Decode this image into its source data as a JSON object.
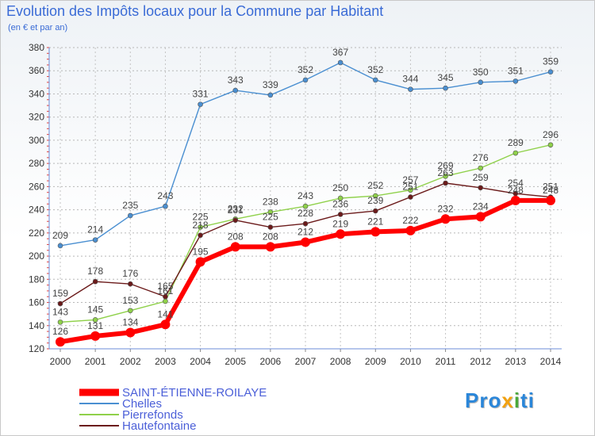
{
  "chart_data": {
    "type": "line",
    "title": "Evolution des Impôts locaux pour la Commune par Habitant",
    "subtitle": "(en € et par an)",
    "categories": [
      "2000",
      "2001",
      "2002",
      "2003",
      "2004",
      "2005",
      "2006",
      "2007",
      "2008",
      "2009",
      "2010",
      "2011",
      "2012",
      "2013",
      "2014"
    ],
    "ylim": [
      120,
      380
    ],
    "yticks": [
      120,
      140,
      160,
      180,
      200,
      220,
      240,
      260,
      280,
      300,
      320,
      340,
      360,
      380
    ],
    "grid": true,
    "legend_position": "bottom-left",
    "series": [
      {
        "name": "Chelles",
        "color": "#4a8fd1",
        "values": [
          209,
          214,
          235,
          243,
          331,
          343,
          339,
          352,
          367,
          352,
          344,
          345,
          350,
          351,
          359
        ]
      },
      {
        "name": "Pierrefonds",
        "color": "#8fd14a",
        "values": [
          143,
          145,
          153,
          161,
          225,
          232,
          238,
          243,
          250,
          252,
          257,
          269,
          276,
          289,
          296
        ]
      },
      {
        "name": "Hautefontaine",
        "color": "#6b1a1a",
        "values": [
          159,
          178,
          176,
          165,
          218,
          231,
          225,
          228,
          236,
          239,
          251,
          263,
          259,
          254,
          251
        ]
      },
      {
        "name": "SAINT-ÉTIENNE-ROILAYE",
        "color": "#ff0000",
        "values": [
          126,
          131,
          134,
          141,
          195,
          208,
          208,
          212,
          219,
          221,
          222,
          232,
          234,
          248,
          248
        ]
      }
    ],
    "legend_order": [
      "SAINT-ÉTIENNE-ROILAYE",
      "Chelles",
      "Pierrefonds",
      "Hautefontaine"
    ]
  },
  "logo": {
    "part1": "Pro",
    "part2": "x",
    "part3": "i",
    "part4": "ti"
  }
}
